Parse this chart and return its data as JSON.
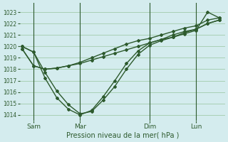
{
  "title": "Pression niveau de la mer( hPa )",
  "bg_color": "#d4ecee",
  "grid_color": "#88bb88",
  "line_color": "#2d5a2d",
  "ylim": [
    1013.5,
    1023.8
  ],
  "yticks": [
    1014,
    1015,
    1016,
    1017,
    1018,
    1019,
    1020,
    1021,
    1022,
    1023
  ],
  "xtick_labels": [
    "Sam",
    "Mar",
    "Dim",
    "Lun"
  ],
  "xtick_positions": [
    1,
    5,
    11,
    15
  ],
  "vlines": [
    1,
    5,
    11,
    15
  ],
  "xlim": [
    -0.2,
    17.5
  ],
  "series": [
    {
      "x": [
        0,
        1,
        2,
        3,
        4,
        5,
        6,
        7,
        8,
        9,
        10,
        11,
        12,
        13,
        14,
        15,
        16,
        17
      ],
      "y": [
        1019.8,
        1018.3,
        1018.0,
        1018.1,
        1018.3,
        1018.5,
        1018.8,
        1019.1,
        1019.4,
        1019.7,
        1020.0,
        1020.3,
        1020.6,
        1021.0,
        1021.3,
        1021.5,
        1022.0,
        1022.3
      ]
    },
    {
      "x": [
        0,
        1,
        2,
        3,
        4,
        5,
        6,
        7,
        8,
        9,
        10,
        11,
        12,
        13,
        14,
        15,
        16,
        17
      ],
      "y": [
        1019.8,
        1018.3,
        1018.0,
        1018.1,
        1018.3,
        1018.6,
        1019.0,
        1019.4,
        1019.8,
        1020.2,
        1020.5,
        1020.7,
        1021.0,
        1021.3,
        1021.6,
        1021.8,
        1022.3,
        1022.5
      ]
    },
    {
      "x": [
        0,
        1,
        2,
        3,
        4,
        5,
        6,
        7,
        8,
        9,
        10,
        11,
        12,
        13,
        14,
        15,
        16,
        17
      ],
      "y": [
        1020.0,
        1019.5,
        1017.7,
        1016.1,
        1014.9,
        1014.1,
        1014.3,
        1015.3,
        1016.5,
        1018.0,
        1019.3,
        1020.1,
        1020.5,
        1020.8,
        1021.2,
        1021.5,
        1022.0,
        1022.3
      ]
    },
    {
      "x": [
        0,
        1,
        2,
        3,
        4,
        5,
        6,
        7,
        8,
        9,
        10,
        11,
        12,
        13,
        14,
        15,
        16,
        17
      ],
      "y": [
        1020.0,
        1019.5,
        1017.2,
        1015.5,
        1014.5,
        1014.0,
        1014.4,
        1015.6,
        1017.0,
        1018.5,
        1019.6,
        1020.3,
        1020.6,
        1020.8,
        1021.1,
        1021.4,
        1023.0,
        1022.5
      ]
    }
  ],
  "marker": "D",
  "markersize": 2.0,
  "linewidth": 1.0
}
